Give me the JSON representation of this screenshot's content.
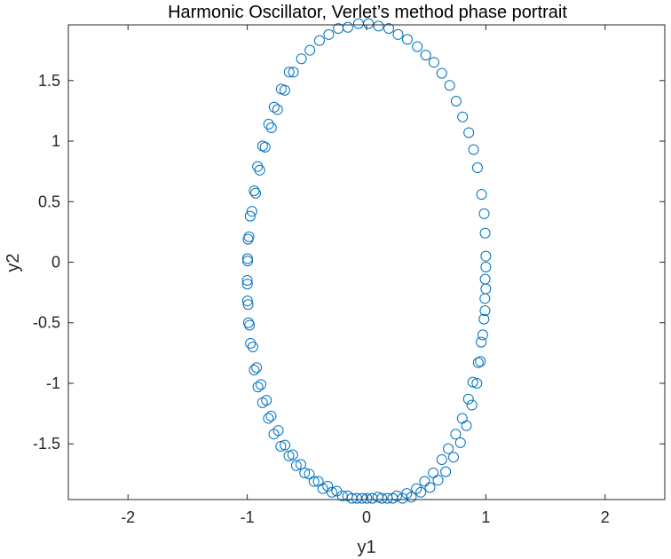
{
  "chart_data": {
    "type": "scatter",
    "title": "Harmonic Oscillator, Verlet’s method phase portrait",
    "xlabel": "y1",
    "ylabel": "y2",
    "xlim": [
      -2.5,
      2.5
    ],
    "ylim": [
      -1.96,
      1.96
    ],
    "xticks": [
      -2,
      -1,
      0,
      1,
      2
    ],
    "xtick_labels": [
      "-2",
      "-1",
      "0",
      "1",
      "2"
    ],
    "yticks": [
      -1.5,
      -1,
      -0.5,
      0,
      0.5,
      1,
      1.5
    ],
    "ytick_labels": [
      "-1.5",
      "-1",
      "-0.5",
      "0",
      "0.5",
      "1",
      "1.5"
    ],
    "grid": false,
    "marker": "open-circle",
    "color": "#0072BD",
    "series": [
      {
        "x": [
          1.0,
          1.0,
          0.993,
          0.974,
          0.954,
          0.925,
          0.883,
          0.837,
          0.787,
          0.729,
          0.663,
          0.599,
          0.532,
          0.455,
          0.375,
          0.301,
          0.219,
          0.128,
          0.048,
          -0.039,
          -0.122,
          -0.203,
          -0.29,
          -0.367,
          -0.441,
          -0.519,
          -0.589,
          -0.651,
          -0.719,
          -0.777,
          -0.823,
          -0.872,
          -0.911,
          -0.942,
          -0.973,
          -0.99,
          -0.998,
          -1.0,
          -0.998,
          -0.986,
          -0.961,
          -0.93,
          -0.895,
          -0.85,
          -0.798,
          -0.746,
          -0.685,
          -0.613,
          -0.546,
          -0.475,
          -0.395,
          -0.317,
          -0.237,
          -0.157,
          -0.068,
          0.016,
          0.1,
          0.186,
          0.264,
          0.342,
          0.425,
          0.496,
          0.565,
          0.631,
          0.697,
          0.751,
          0.805,
          0.857,
          0.897,
          0.93,
          0.964,
          0.986,
          0.994,
          1.0,
          0.994,
          0.992,
          0.984,
          0.961,
          0.936,
          0.891,
          0.854,
          0.802,
          0.747,
          0.685,
          0.631,
          0.559,
          0.487,
          0.418,
          0.337,
          0.253,
          0.175,
          0.095,
          0.003,
          -0.082,
          -0.159,
          -0.25,
          -0.326,
          -0.405,
          -0.48,
          -0.551,
          -0.619,
          -0.684,
          -0.74,
          -0.8,
          -0.839,
          -0.885,
          -0.922,
          -0.953,
          -0.981,
          -0.993,
          -0.999,
          -0.997,
          -0.993,
          -0.976,
          -0.942,
          -0.914,
          -0.871,
          -0.821,
          -0.775,
          -0.715,
          -0.649
        ],
        "y": [
          -0.04,
          -0.22,
          -0.4,
          -0.6,
          -0.82,
          -1.0,
          -1.18,
          -1.35,
          -1.49,
          -1.61,
          -1.73,
          -1.8,
          -1.86,
          -1.9,
          -1.94,
          -1.95,
          -1.95,
          -1.95,
          -1.95,
          -1.95,
          -1.95,
          -1.93,
          -1.9,
          -1.87,
          -1.81,
          -1.74,
          -1.68,
          -1.6,
          -1.52,
          -1.42,
          -1.29,
          -1.16,
          -1.03,
          -0.89,
          -0.67,
          -0.5,
          -0.32,
          -0.15,
          0.03,
          0.21,
          0.42,
          0.57,
          0.76,
          0.95,
          1.11,
          1.26,
          1.42,
          1.57,
          1.68,
          1.75,
          1.83,
          1.88,
          1.93,
          1.94,
          1.97,
          1.97,
          1.95,
          1.93,
          1.88,
          1.84,
          1.78,
          1.71,
          1.65,
          1.56,
          1.46,
          1.33,
          1.2,
          1.07,
          0.93,
          0.78,
          0.56,
          0.4,
          0.24,
          0.05,
          -0.14,
          -0.3,
          -0.47,
          -0.66,
          -0.83,
          -0.99,
          -1.13,
          -1.29,
          -1.42,
          -1.54,
          -1.63,
          -1.74,
          -1.81,
          -1.87,
          -1.91,
          -1.93,
          -1.95,
          -1.94,
          -1.95,
          -1.95,
          -1.93,
          -1.89,
          -1.85,
          -1.81,
          -1.75,
          -1.67,
          -1.59,
          -1.51,
          -1.39,
          -1.27,
          -1.14,
          -1.01,
          -0.87,
          -0.7,
          -0.52,
          -0.35,
          -0.18,
          0.01,
          0.19,
          0.38,
          0.59,
          0.79,
          0.96,
          1.14,
          1.28,
          1.43,
          1.57
        ]
      }
    ]
  }
}
